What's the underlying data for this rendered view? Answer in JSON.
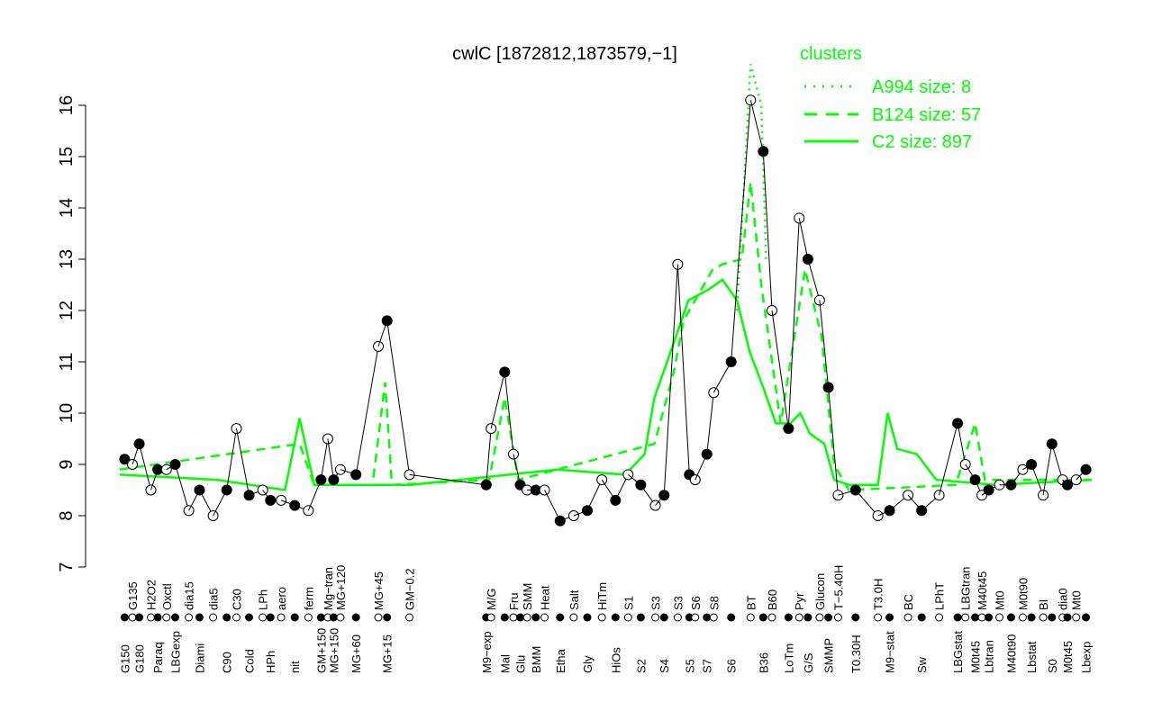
{
  "chart_data": {
    "type": "line",
    "title": "cwlC [1872812,1873579,−1]",
    "xlabel": "",
    "ylabel": "",
    "ylim": [
      7,
      16
    ],
    "yticks": [
      7,
      8,
      9,
      10,
      11,
      12,
      13,
      14,
      15,
      16
    ],
    "xlim": [
      0,
      100
    ],
    "legend": {
      "title": "clusters",
      "placement": "top-right",
      "entries": [
        {
          "label": "A994 size: 8",
          "style": "dotted"
        },
        {
          "label": "B124 size: 57",
          "style": "dashed"
        },
        {
          "label": "C2 size: 897",
          "style": "solid"
        }
      ]
    },
    "colors": {
      "cluster": "#00ff00",
      "points": "#000000"
    },
    "points": [
      {
        "label": "G150",
        "x": 0.5,
        "y": 9.1
      },
      {
        "label": "G135",
        "x": 1.3,
        "y": 9.0
      },
      {
        "label": "G180",
        "x": 2.0,
        "y": 9.4
      },
      {
        "label": "H2O2",
        "x": 3.2,
        "y": 8.5
      },
      {
        "label": "Paraq",
        "x": 3.9,
        "y": 8.9
      },
      {
        "label": "Oxctl",
        "x": 4.8,
        "y": 8.9
      },
      {
        "label": "LBGexp",
        "x": 5.7,
        "y": 9.0
      },
      {
        "label": "dia15",
        "x": 7.1,
        "y": 8.1
      },
      {
        "label": "Diami",
        "x": 8.2,
        "y": 8.5
      },
      {
        "label": "dia5",
        "x": 9.6,
        "y": 8.0
      },
      {
        "label": "C90",
        "x": 11.0,
        "y": 8.5
      },
      {
        "label": "C30",
        "x": 12.0,
        "y": 9.7
      },
      {
        "label": "Cold",
        "x": 13.3,
        "y": 8.4
      },
      {
        "label": "LPh",
        "x": 14.7,
        "y": 8.5
      },
      {
        "label": "HPh",
        "x": 15.5,
        "y": 8.3
      },
      {
        "label": "aero",
        "x": 16.6,
        "y": 8.3
      },
      {
        "label": "nit",
        "x": 18.0,
        "y": 8.2
      },
      {
        "label": "ferm",
        "x": 19.4,
        "y": 8.1
      },
      {
        "label": "GM+150",
        "x": 20.7,
        "y": 8.7
      },
      {
        "label": "Mg−tran",
        "x": 21.4,
        "y": 9.5
      },
      {
        "label": "MG+150",
        "x": 22.0,
        "y": 8.7
      },
      {
        "label": "MG+120",
        "x": 22.7,
        "y": 8.9
      },
      {
        "label": "MG+60",
        "x": 24.3,
        "y": 8.8
      },
      {
        "label": "MG+45",
        "x": 26.6,
        "y": 11.3
      },
      {
        "label": "MG+15",
        "x": 27.5,
        "y": 11.8
      },
      {
        "label": "GM−0.2",
        "x": 29.8,
        "y": 8.8
      },
      {
        "label": "M9−exp",
        "x": 37.7,
        "y": 8.6
      },
      {
        "label": "M/G",
        "x": 38.2,
        "y": 9.7
      },
      {
        "label": "Mal",
        "x": 39.6,
        "y": 10.8
      },
      {
        "label": "Fru",
        "x": 40.5,
        "y": 9.2
      },
      {
        "label": "Glu",
        "x": 41.2,
        "y": 8.6
      },
      {
        "label": "SMM",
        "x": 41.9,
        "y": 8.5
      },
      {
        "label": "BMM",
        "x": 42.8,
        "y": 8.5
      },
      {
        "label": "Heat",
        "x": 43.7,
        "y": 8.5
      },
      {
        "label": "Etha",
        "x": 45.3,
        "y": 7.9
      },
      {
        "label": "Salt",
        "x": 46.7,
        "y": 8.0
      },
      {
        "label": "Gly",
        "x": 48.1,
        "y": 8.1
      },
      {
        "label": "HiTm",
        "x": 49.6,
        "y": 8.7
      },
      {
        "label": "HiOs",
        "x": 51.0,
        "y": 8.3
      },
      {
        "label": "S1",
        "x": 52.3,
        "y": 8.8
      },
      {
        "label": "S2",
        "x": 53.6,
        "y": 8.6
      },
      {
        "label": "S3",
        "x": 55.1,
        "y": 8.2
      },
      {
        "label": "S4",
        "x": 56.0,
        "y": 8.4
      },
      {
        "label": "S3",
        "x": 57.4,
        "y": 12.9
      },
      {
        "label": "S5",
        "x": 58.6,
        "y": 8.8
      },
      {
        "label": "S6",
        "x": 59.2,
        "y": 8.7
      },
      {
        "label": "S7",
        "x": 60.4,
        "y": 9.2
      },
      {
        "label": "S8",
        "x": 61.1,
        "y": 10.4
      },
      {
        "label": "S6",
        "x": 62.9,
        "y": 11.0
      },
      {
        "label": "BT",
        "x": 64.9,
        "y": 16.1
      },
      {
        "label": "B36",
        "x": 66.2,
        "y": 15.1
      },
      {
        "label": "B60",
        "x": 67.1,
        "y": 12.0
      },
      {
        "label": "LoTm",
        "x": 68.8,
        "y": 9.7
      },
      {
        "label": "Pyr",
        "x": 69.9,
        "y": 13.8
      },
      {
        "label": "G/S",
        "x": 70.8,
        "y": 13.0
      },
      {
        "label": "Glucon",
        "x": 72.0,
        "y": 12.2
      },
      {
        "label": "SMMP",
        "x": 72.9,
        "y": 10.5
      },
      {
        "label": "T−5.40H",
        "x": 73.9,
        "y": 8.4
      },
      {
        "label": "T0.30H",
        "x": 75.7,
        "y": 8.5
      },
      {
        "label": "T3.0H",
        "x": 78.0,
        "y": 8.0
      },
      {
        "label": "M9−stat",
        "x": 79.2,
        "y": 8.1
      },
      {
        "label": "BC",
        "x": 81.1,
        "y": 8.4
      },
      {
        "label": "Sw",
        "x": 82.5,
        "y": 8.1
      },
      {
        "label": "LPhT",
        "x": 84.3,
        "y": 8.4
      },
      {
        "label": "LBGstat",
        "x": 86.2,
        "y": 9.8
      },
      {
        "label": "LBGtran",
        "x": 87.0,
        "y": 9.0
      },
      {
        "label": "M0t45",
        "x": 88.0,
        "y": 8.7
      },
      {
        "label": "M40t45",
        "x": 88.7,
        "y": 8.4
      },
      {
        "label": "Lbtran",
        "x": 89.4,
        "y": 8.5
      },
      {
        "label": "Mt0",
        "x": 90.5,
        "y": 8.6
      },
      {
        "label": "M40t90",
        "x": 91.7,
        "y": 8.6
      },
      {
        "label": "M0t90",
        "x": 92.9,
        "y": 8.9
      },
      {
        "label": "Lbstat",
        "x": 93.8,
        "y": 9.0
      },
      {
        "label": "BI",
        "x": 95.0,
        "y": 8.4
      },
      {
        "label": "S0",
        "x": 95.9,
        "y": 9.4
      },
      {
        "label": "dia0",
        "x": 97.0,
        "y": 8.7
      },
      {
        "label": "M0t45",
        "x": 97.5,
        "y": 8.6
      },
      {
        "label": "Mt0",
        "x": 98.4,
        "y": 8.7
      },
      {
        "label": "Lbexp",
        "x": 99.4,
        "y": 8.9
      }
    ],
    "series": [
      {
        "name": "A994",
        "style": "dotted",
        "x": [
          63.5,
          64.9,
          66,
          66.5
        ],
        "y": [
          12,
          16.8,
          16,
          13
        ]
      },
      {
        "name": "B124",
        "style": "dashed",
        "x": [
          0,
          18.5,
          20,
          26,
          27.3,
          28,
          38,
          39.6,
          41,
          55,
          57,
          58,
          61,
          62,
          64,
          64.9,
          66,
          68,
          70.5,
          72.2,
          73.5,
          75,
          86,
          88,
          89,
          100
        ],
        "y": [
          8.9,
          9.4,
          8.6,
          8.6,
          10.6,
          8.6,
          8.7,
          10.3,
          8.7,
          9.4,
          10.8,
          11.8,
          12.8,
          12.9,
          13,
          14.5,
          12.5,
          9.8,
          12.8,
          11.5,
          9,
          8.5,
          8.6,
          9.8,
          8.7,
          8.7
        ]
      },
      {
        "name": "C2",
        "style": "solid",
        "x": [
          0,
          10,
          17,
          18.5,
          20,
          30,
          45,
          52,
          54,
          55,
          56.5,
          58.5,
          60.5,
          62,
          63.5,
          64.8,
          66.2,
          67.5,
          69,
          70,
          71,
          72.5,
          73.5,
          75,
          78,
          79,
          80,
          82,
          84,
          90,
          100
        ],
        "y": [
          8.8,
          8.7,
          8.5,
          9.9,
          8.6,
          8.6,
          8.9,
          8.8,
          9.2,
          10.3,
          11.1,
          12.2,
          12.4,
          12.6,
          12.2,
          11.2,
          10.5,
          9.8,
          9.8,
          10,
          9.6,
          9.4,
          8.7,
          8.6,
          8.6,
          10,
          9.3,
          9.2,
          8.7,
          8.6,
          8.7
        ]
      }
    ]
  }
}
